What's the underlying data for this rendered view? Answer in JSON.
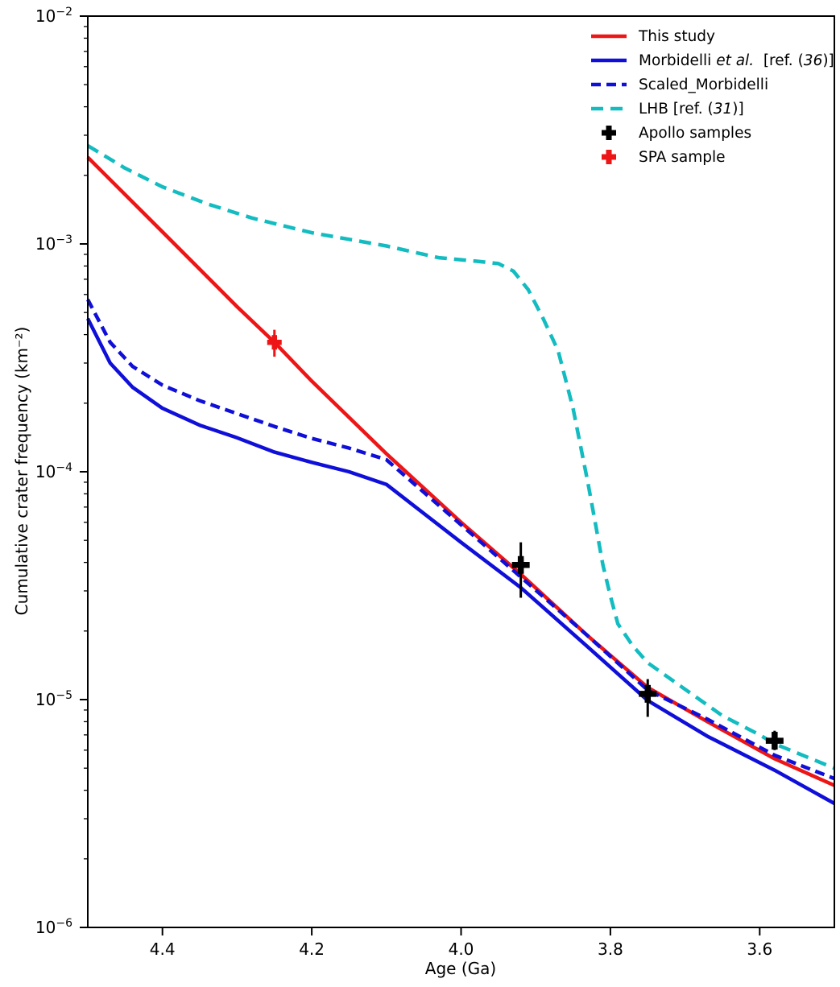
{
  "page": {
    "background": "#ffffff"
  },
  "chart_data": {
    "type": "line",
    "title": "",
    "xlabel": "Age (Ga)",
    "ylabel": "Cumulative crater frequency (km⁻²)",
    "x_axis": {
      "lim": [
        4.5,
        3.5
      ],
      "reversed": true,
      "tick_values": [
        4.4,
        4.2,
        4.0,
        3.8,
        3.6
      ],
      "ticks": [
        "4.4",
        "4.2",
        "4.0",
        "3.8",
        "3.6"
      ],
      "minor_ticks": false
    },
    "y_axis": {
      "scale": "log",
      "lim_exponents": [
        -2,
        -6
      ],
      "tick_exponents": [
        -2,
        -3,
        -4,
        -5,
        -6
      ],
      "tick_labels": [
        "10⁻²",
        "10⁻³",
        "10⁻⁴",
        "10⁻⁵",
        "10⁻⁶"
      ],
      "minor_ticks": true
    },
    "grid": false,
    "legend_position": "upper-right",
    "frame_color": "#000000",
    "series": [
      {
        "name": "This study",
        "color": "#ed1515",
        "style": "solid",
        "width": 4.5,
        "points": [
          [
            4.5,
            0.0024
          ],
          [
            4.4,
            0.00113
          ],
          [
            4.3,
            0.00053
          ],
          [
            4.25,
            0.00037
          ],
          [
            4.2,
            0.00025
          ],
          [
            4.1,
            0.00012
          ],
          [
            4.0,
            6e-05
          ],
          [
            3.92,
            3.55e-05
          ],
          [
            3.83,
            1.9e-05
          ],
          [
            3.75,
            1.13e-05
          ],
          [
            3.67,
            8e-06
          ],
          [
            3.58,
            5.5e-06
          ],
          [
            3.5,
            4.2e-06
          ]
        ]
      },
      {
        "name": "Morbidelli et al. [ref. (36)]",
        "color": "#0f0fd9",
        "style": "solid",
        "width": 4.5,
        "points": [
          [
            4.5,
            0.00047
          ],
          [
            4.47,
            0.0003
          ],
          [
            4.44,
            0.000235
          ],
          [
            4.4,
            0.00019
          ],
          [
            4.35,
            0.00016
          ],
          [
            4.3,
            0.000141
          ],
          [
            4.25,
            0.000122
          ],
          [
            4.2,
            0.00011
          ],
          [
            4.15,
            0.0001
          ],
          [
            4.1,
            8.8e-05
          ],
          [
            4.0,
            4.9e-05
          ],
          [
            3.92,
            3.1e-05
          ],
          [
            3.83,
            1.7e-05
          ],
          [
            3.75,
            9.9e-06
          ],
          [
            3.67,
            6.9e-06
          ],
          [
            3.58,
            4.9e-06
          ],
          [
            3.5,
            3.5e-06
          ]
        ]
      },
      {
        "name": "Scaled_Morbidelli",
        "color": "#0f0fd9",
        "style": "dashed",
        "dash": [
          12,
          7
        ],
        "width": 4.5,
        "points": [
          [
            4.5,
            0.00057
          ],
          [
            4.47,
            0.00037
          ],
          [
            4.44,
            0.00029
          ],
          [
            4.4,
            0.00024
          ],
          [
            4.35,
            0.000205
          ],
          [
            4.3,
            0.00018
          ],
          [
            4.25,
            0.000158
          ],
          [
            4.2,
            0.00014
          ],
          [
            4.15,
            0.000127
          ],
          [
            4.1,
            0.000113
          ],
          [
            4.0,
            5.85e-05
          ],
          [
            3.92,
            3.45e-05
          ],
          [
            3.83,
            1.9e-05
          ],
          [
            3.75,
            1.1e-05
          ],
          [
            3.67,
            8.2e-06
          ],
          [
            3.58,
            5.7e-06
          ],
          [
            3.5,
            4.5e-06
          ]
        ]
      },
      {
        "name": "LHB [ref. (31)]",
        "color": "#12bcc0",
        "style": "dashed",
        "dash": [
          15,
          9
        ],
        "width": 4.5,
        "points": [
          [
            4.5,
            0.0027
          ],
          [
            4.45,
            0.00215
          ],
          [
            4.4,
            0.00178
          ],
          [
            4.34,
            0.0015
          ],
          [
            4.28,
            0.0013
          ],
          [
            4.2,
            0.00112
          ],
          [
            4.1,
            0.00098
          ],
          [
            4.03,
            0.00087
          ],
          [
            3.98,
            0.00084
          ],
          [
            3.95,
            0.00082
          ],
          [
            3.93,
            0.00076
          ],
          [
            3.91,
            0.00063
          ],
          [
            3.89,
            0.00047
          ],
          [
            3.87,
            0.00034
          ],
          [
            3.85,
            0.00019
          ],
          [
            3.83,
            8.9e-05
          ],
          [
            3.82,
            5.9e-05
          ],
          [
            3.81,
            3.9e-05
          ],
          [
            3.8,
            2.85e-05
          ],
          [
            3.79,
            2.15e-05
          ],
          [
            3.77,
            1.72e-05
          ],
          [
            3.75,
            1.45e-05
          ],
          [
            3.7,
            1.11e-05
          ],
          [
            3.65,
            8.5e-06
          ],
          [
            3.6,
            7e-06
          ],
          [
            3.58,
            6.4e-06
          ],
          [
            3.5,
            5e-06
          ]
        ]
      }
    ],
    "samples": [
      {
        "name": "Apollo samples",
        "color": "#000000",
        "marker": "plus",
        "points": [
          {
            "age": 3.92,
            "value": 3.9e-05,
            "err_lo": 2.8e-05,
            "err_hi": 4.9e-05
          },
          {
            "age": 3.75,
            "value": 1.06e-05,
            "err_lo": 8.4e-06,
            "err_hi": 1.23e-05
          },
          {
            "age": 3.58,
            "value": 6.6e-06,
            "err_lo": 6e-06,
            "err_hi": 7.3e-06
          }
        ]
      },
      {
        "name": "SPA sample",
        "color": "#ed1515",
        "marker": "plus",
        "points": [
          {
            "age": 4.25,
            "value": 0.00037,
            "err_lo": 0.00032,
            "err_hi": 0.00042
          }
        ]
      }
    ]
  },
  "legend": {
    "items": [
      {
        "label": "This study",
        "parts": [
          {
            "text": "This study",
            "italic": false
          }
        ],
        "color": "#ed1515",
        "style": "line-solid"
      },
      {
        "label": "Morbidelli et al.  [ref. (36)]",
        "parts": [
          {
            "text": "Morbidelli ",
            "italic": false
          },
          {
            "text": "et al.",
            "italic": true
          },
          {
            "text": "  [ref. (",
            "italic": false
          },
          {
            "text": "36",
            "italic": true
          },
          {
            "text": ")]",
            "italic": false
          }
        ],
        "color": "#0f0fd9",
        "style": "line-solid"
      },
      {
        "label": "Scaled_Morbidelli",
        "parts": [
          {
            "text": "Scaled_Morbidelli",
            "italic": false
          }
        ],
        "color": "#0f0fd9",
        "style": "line-dashed",
        "dash": [
          12,
          7
        ]
      },
      {
        "label": "LHB [ref. (31)]",
        "parts": [
          {
            "text": "LHB [ref. (",
            "italic": false
          },
          {
            "text": "31",
            "italic": true
          },
          {
            "text": ")]",
            "italic": false
          }
        ],
        "color": "#12bcc0",
        "style": "line-dashed",
        "dash": [
          15,
          9
        ]
      },
      {
        "label": "Apollo samples",
        "parts": [
          {
            "text": "Apollo samples",
            "italic": false
          }
        ],
        "color": "#000000",
        "style": "marker-plus"
      },
      {
        "label": "SPA sample",
        "parts": [
          {
            "text": "SPA sample",
            "italic": false
          }
        ],
        "color": "#ed1515",
        "style": "marker-plus"
      }
    ]
  }
}
